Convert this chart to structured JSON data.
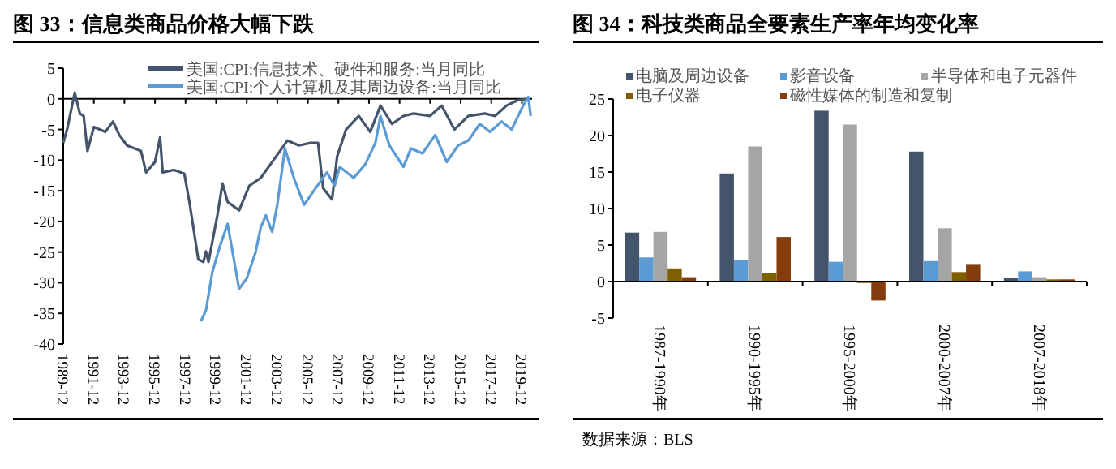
{
  "chart_data": [
    {
      "type": "line",
      "title": "图 33：信息类商品价格大幅下跌",
      "ylim": [
        -40,
        5
      ],
      "yticks": [
        5,
        0,
        -5,
        -10,
        -15,
        -20,
        -25,
        -30,
        -35,
        -40
      ],
      "xlim": [
        "1989-12",
        "2020-08"
      ],
      "xticks": [
        "1989-12",
        "1991-12",
        "1993-12",
        "1995-12",
        "1997-12",
        "1999-12",
        "2001-12",
        "2003-12",
        "2005-12",
        "2007-12",
        "2009-12",
        "2011-12",
        "2013-12",
        "2015-12",
        "2017-12",
        "2019-12"
      ],
      "legend": "top",
      "series": [
        {
          "name": "美国:CPI:信息技术、硬件和服务:当月同比",
          "color": "#44546a",
          "x": [
            "1989-12",
            "1990-03",
            "1990-09",
            "1991-01",
            "1991-04",
            "1991-07",
            "1991-12",
            "1992-09",
            "1993-03",
            "1993-08",
            "1994-02",
            "1995-01",
            "1995-05",
            "1995-12",
            "1996-04",
            "1996-06",
            "1997-03",
            "1997-11",
            "1998-03",
            "1998-10",
            "1999-02",
            "1999-04",
            "1999-06",
            "2000-01",
            "2000-05",
            "2000-09",
            "2001-06",
            "2002-02",
            "2002-11",
            "2003-08",
            "2004-08",
            "2005-05",
            "2006-02",
            "2006-08",
            "2006-12",
            "2007-07",
            "2007-11",
            "2008-06",
            "2009-04",
            "2010-01",
            "2010-09",
            "2011-06",
            "2012-03",
            "2012-11",
            "2013-12",
            "2014-09",
            "2015-07",
            "2016-06",
            "2017-07",
            "2018-03",
            "2018-12",
            "2019-09",
            "2020-05"
          ],
          "values": [
            -7.2,
            -5,
            1,
            -2.4,
            -2.8,
            -8.5,
            -4.6,
            -5.4,
            -3.7,
            -5.9,
            -7.6,
            -8.5,
            -12,
            -10.3,
            -6.3,
            -12,
            -11.6,
            -12.2,
            -16.8,
            -26.2,
            -26.6,
            -24.9,
            -26.6,
            -19,
            -13.8,
            -16.8,
            -18.2,
            -14.2,
            -12.9,
            -10.3,
            -6.8,
            -7.6,
            -7.2,
            -7.2,
            -14.6,
            -16.4,
            -9.4,
            -5,
            -2.8,
            -5.4,
            -1.1,
            -4.1,
            -2.8,
            -2.4,
            -2.8,
            -1.1,
            -5,
            -2.8,
            -2.4,
            -2.8,
            -1.1,
            -0.2,
            0
          ]
        },
        {
          "name": "美国:CPI:个人计算机及其周边设备:当月同比",
          "color": "#5b9bd5",
          "x": [
            "1998-12",
            "1999-04",
            "1999-09",
            "2000-03",
            "2000-09",
            "2001-06",
            "2001-12",
            "2002-07",
            "2002-11",
            "2003-03",
            "2003-08",
            "2003-12",
            "2004-06",
            "2005-01",
            "2005-09",
            "2006-06",
            "2007-03",
            "2007-09",
            "2008-01",
            "2008-12",
            "2009-09",
            "2010-05",
            "2010-09",
            "2011-04",
            "2012-03",
            "2012-09",
            "2013-06",
            "2014-04",
            "2015-01",
            "2015-10",
            "2016-06",
            "2017-03",
            "2017-11",
            "2018-08",
            "2019-04",
            "2020-01",
            "2020-05",
            "2020-07"
          ],
          "values": [
            -36.3,
            -34.5,
            -28.3,
            -24,
            -20.4,
            -31,
            -29.3,
            -25,
            -21,
            -19,
            -21.7,
            -17.3,
            -8.1,
            -12.9,
            -17.3,
            -14.6,
            -12,
            -14.2,
            -11.1,
            -12.9,
            -10.7,
            -7.2,
            -2.8,
            -7.6,
            -11.1,
            -8.1,
            -8.9,
            -5.9,
            -10.3,
            -7.6,
            -6.8,
            -4.1,
            -5.4,
            -3.7,
            -5,
            -1.1,
            0.3,
            -2.8
          ]
        }
      ]
    },
    {
      "type": "bar",
      "title": "图 34：科技类商品全要素生产率年均变化率",
      "categories": [
        "1987-1990年",
        "1990-1995年",
        "1995-2000年",
        "2000-2007年",
        "2007-2018年"
      ],
      "ylim": [
        -5,
        25
      ],
      "yticks": [
        -5,
        0,
        5,
        10,
        15,
        20,
        25
      ],
      "legend": "top",
      "series": [
        {
          "name": "电脑及周边设备",
          "color": "#44546a",
          "values": [
            6.7,
            14.8,
            23.4,
            17.8,
            0.5
          ]
        },
        {
          "name": "影音设备",
          "color": "#5b9bd5",
          "values": [
            3.3,
            3.0,
            2.7,
            2.8,
            1.4
          ]
        },
        {
          "name": "半导体和电子元器件",
          "color": "#a5a5a5",
          "values": [
            6.8,
            18.5,
            21.5,
            7.3,
            0.6
          ]
        },
        {
          "name": "电子仪器",
          "color": "#7f6000",
          "values": [
            1.8,
            1.2,
            -0.2,
            1.3,
            0.3
          ]
        },
        {
          "name": "磁性媒体的制造和复制",
          "color": "#843c0c",
          "values": [
            0.6,
            6.1,
            -2.6,
            2.4,
            0.3
          ]
        }
      ],
      "annotations": [
        "数据来源：BLS"
      ]
    }
  ]
}
